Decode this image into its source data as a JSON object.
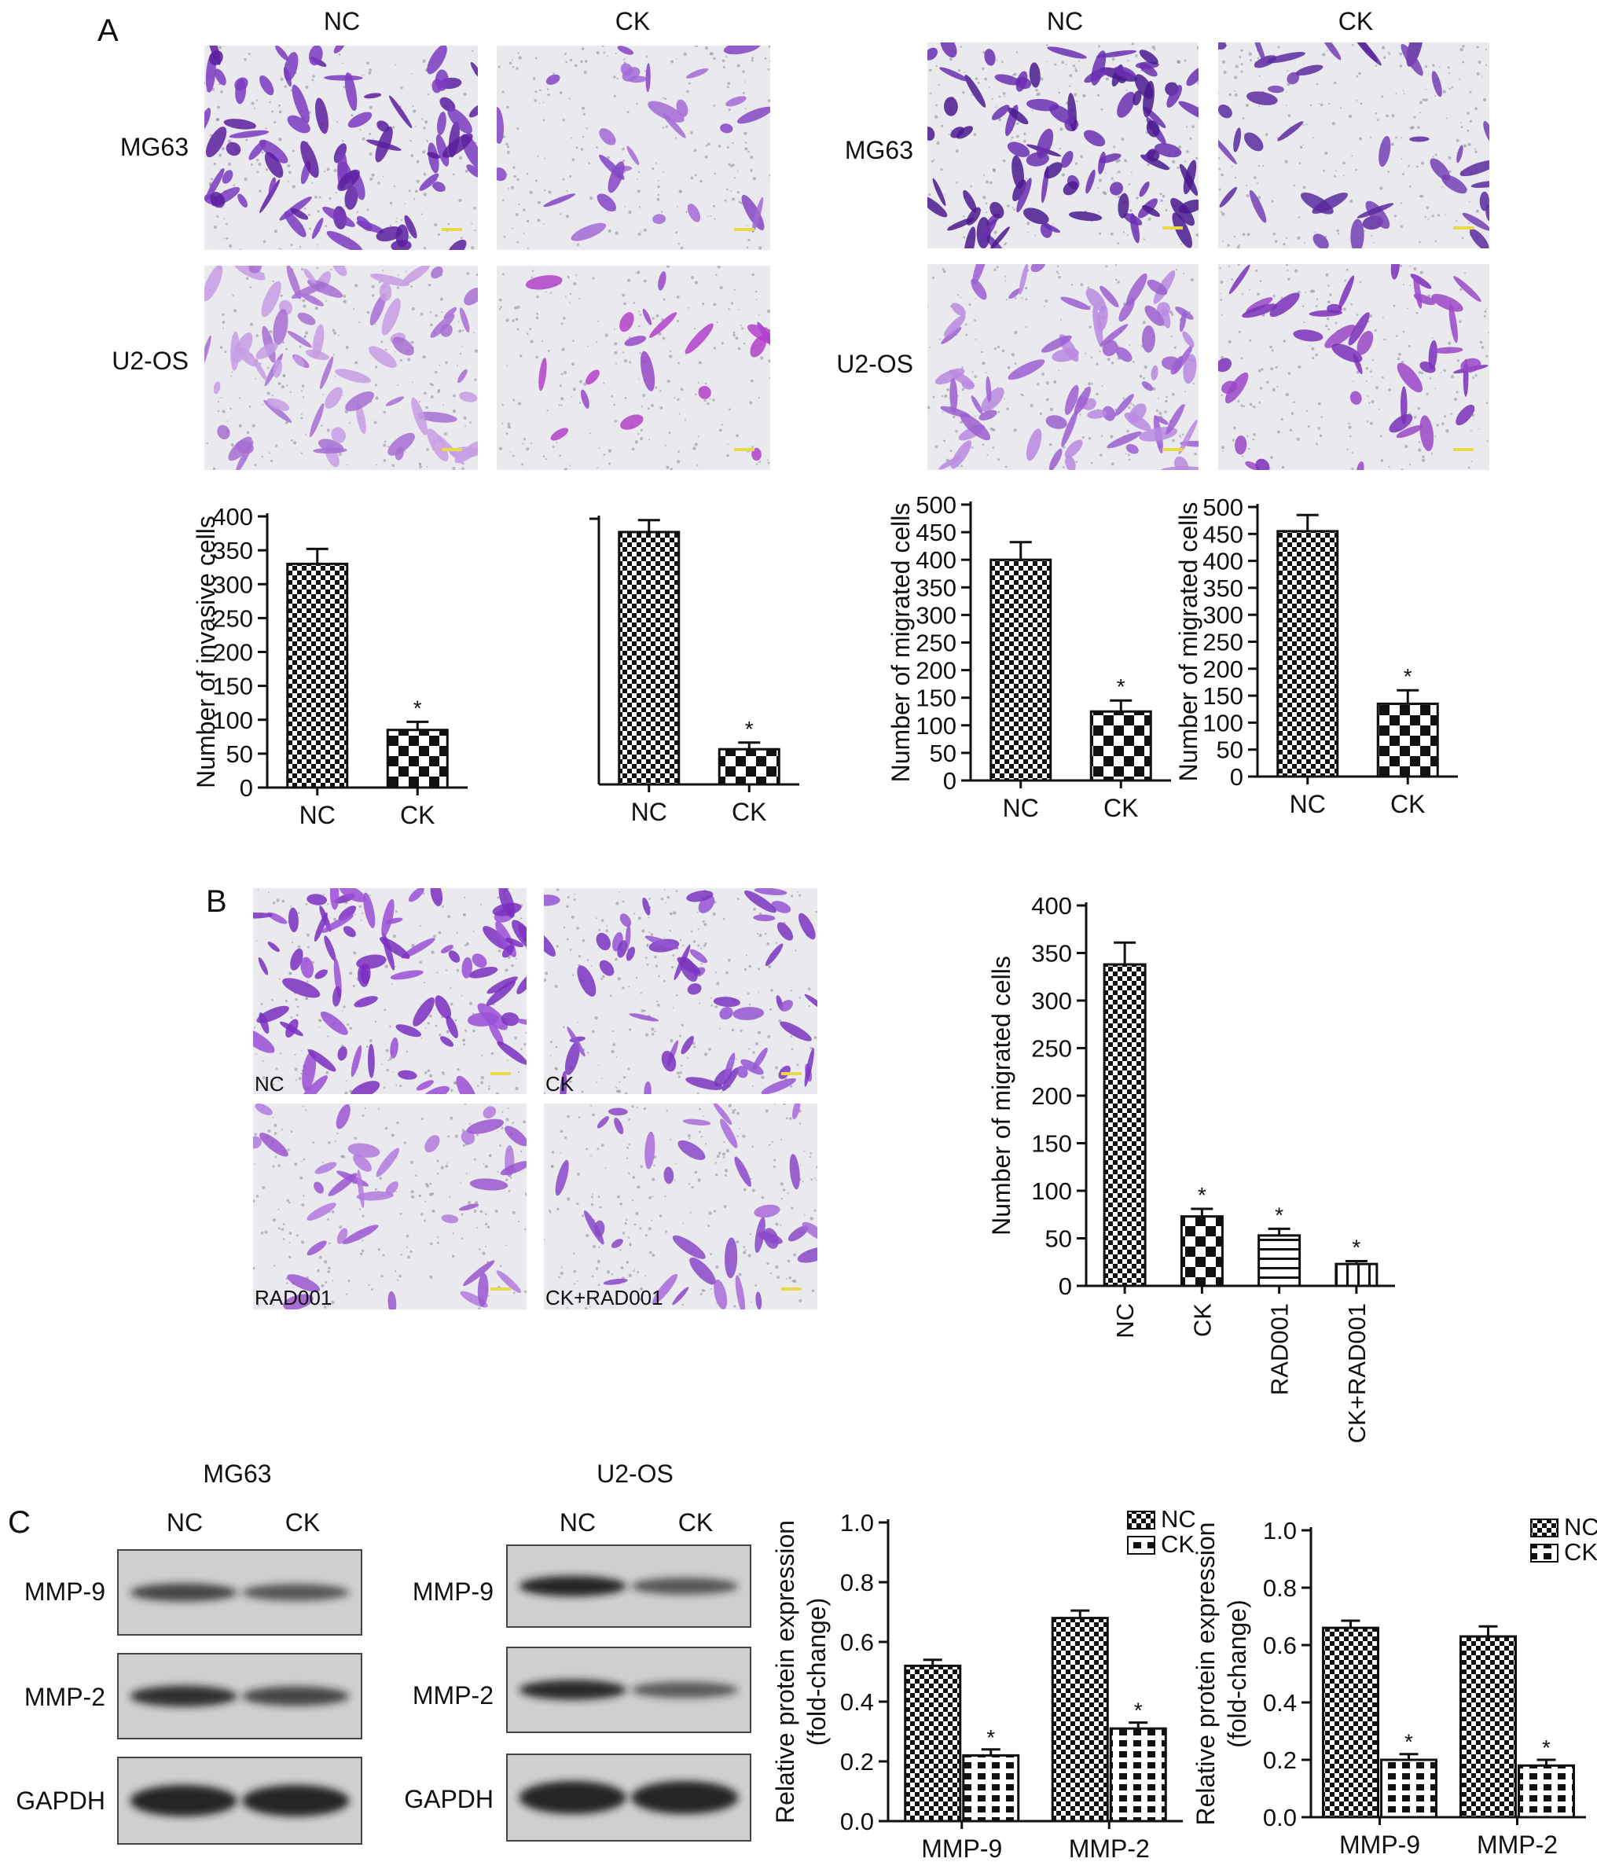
{
  "panel_letters": {
    "a": "A",
    "b": "B",
    "c": "C"
  },
  "panel_a": {
    "invasion": {
      "col_labels": [
        "NC",
        "CK"
      ],
      "row_labels": [
        "MG63",
        "U2-OS"
      ]
    },
    "migration": {
      "col_labels": [
        "NC",
        "CK"
      ],
      "row_labels": [
        "MG63",
        "U2-OS"
      ]
    }
  },
  "panel_b": {
    "image_labels": [
      "NC",
      "CK",
      "RAD001",
      "CK+RAD001"
    ]
  },
  "panel_c": {
    "blot1": {
      "title": "MG63",
      "lanes": [
        "NC",
        "CK"
      ],
      "rows": [
        "MMP-9",
        "MMP-2",
        "GAPDH"
      ]
    },
    "blot2": {
      "title": "U2-OS",
      "lanes": [
        "NC",
        "CK"
      ],
      "rows": [
        "MMP-9",
        "MMP-2",
        "GAPDH"
      ]
    }
  },
  "colors": {
    "stain_dark": "#5b1f9e",
    "stain_light": "#a96ad9",
    "stain_magenta": "#b33fc9",
    "background_field": "#e9e9ee",
    "band": "#1a1a1a",
    "membrane": "#cfcfcf"
  },
  "chart_data": [
    {
      "type": "bar",
      "categories": [
        "NC",
        "CK"
      ],
      "values": [
        330,
        85
      ],
      "errors": [
        22,
        12
      ],
      "significance": [
        "",
        "*"
      ],
      "ylabel": "Number of invasive cells",
      "ylim": [
        0,
        400
      ],
      "yticks": [
        0,
        50,
        100,
        150,
        200,
        250,
        300,
        350,
        400
      ]
    },
    {
      "type": "bar",
      "categories": [
        "NC",
        "CK"
      ],
      "values": [
        380,
        53
      ],
      "errors": [
        18,
        10
      ],
      "significance": [
        "",
        "*"
      ],
      "ylabel": "",
      "ylim": [
        0,
        400
      ],
      "yticks": []
    },
    {
      "type": "bar",
      "categories": [
        "NC",
        "CK"
      ],
      "values": [
        400,
        125
      ],
      "errors": [
        32,
        20
      ],
      "significance": [
        "",
        "*"
      ],
      "ylabel": "Number of migrated cells",
      "ylim": [
        0,
        500
      ],
      "yticks": [
        0,
        50,
        100,
        150,
        200,
        250,
        300,
        350,
        400,
        450,
        500
      ]
    },
    {
      "type": "bar",
      "categories": [
        "NC",
        "CK"
      ],
      "values": [
        455,
        135
      ],
      "errors": [
        30,
        25
      ],
      "significance": [
        "",
        "*"
      ],
      "ylabel": "Number of migrated cells",
      "ylim": [
        0,
        500
      ],
      "yticks": [
        0,
        50,
        100,
        150,
        200,
        250,
        300,
        350,
        400,
        450,
        500
      ]
    },
    {
      "type": "bar",
      "categories": [
        "NC",
        "CK",
        "RAD001",
        "CK+RAD001"
      ],
      "values": [
        338,
        73,
        53,
        23
      ],
      "errors": [
        23,
        8,
        7,
        3
      ],
      "significance": [
        "",
        "*",
        "*",
        "*"
      ],
      "ylabel": "Number of migrated cells",
      "ylim": [
        0,
        400
      ],
      "yticks": [
        0,
        50,
        100,
        150,
        200,
        250,
        300,
        350,
        400
      ]
    },
    {
      "type": "bar",
      "categories": [
        "MMP-9",
        "MMP-2"
      ],
      "series": [
        {
          "name": "NC",
          "values": [
            0.52,
            0.68
          ],
          "errors": [
            0.02,
            0.025
          ]
        },
        {
          "name": "CK",
          "values": [
            0.22,
            0.31
          ],
          "errors": [
            0.02,
            0.02
          ]
        }
      ],
      "significance": [
        "*",
        "*"
      ],
      "ylabel": "Relative protein expression (fold-change)",
      "ylim": [
        0,
        1.0
      ],
      "yticks": [
        "0.0",
        "0.2",
        "0.4",
        "0.6",
        "0.8",
        "1.0"
      ],
      "legend": "top-right"
    },
    {
      "type": "bar",
      "categories": [
        "MMP-9",
        "MMP-2"
      ],
      "series": [
        {
          "name": "NC",
          "values": [
            0.66,
            0.63
          ],
          "errors": [
            0.025,
            0.035
          ]
        },
        {
          "name": "CK",
          "values": [
            0.2,
            0.18
          ],
          "errors": [
            0.02,
            0.02
          ]
        }
      ],
      "significance": [
        "*",
        "*"
      ],
      "ylabel": "Relative protein expression (fold-change)",
      "ylim": [
        0,
        1.0
      ],
      "yticks": [
        "0.0",
        "0.2",
        "0.4",
        "0.6",
        "0.8",
        "1.0"
      ],
      "legend": "top-right"
    }
  ]
}
